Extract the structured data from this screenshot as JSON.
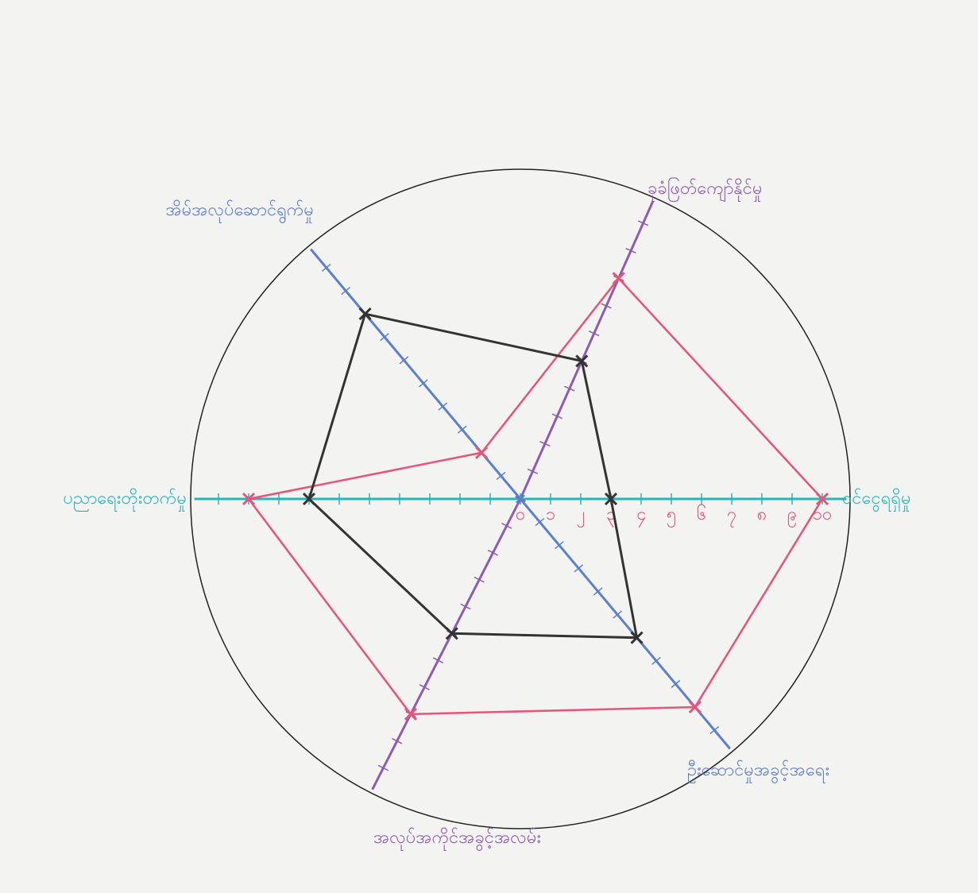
{
  "chart_data": {
    "type": "radar",
    "categories": [
      "ဝင်ငွေရရှိမှု",
      "ခုခံဖြတ်ကျော်နိုင်မှု",
      "အိမ်အလုပ်ဆောင်ရွက်မှု",
      "ပညာရေးတိုးတက်မှု",
      "အလုပ်အကိုင်အခွင့်အလမ်း",
      "ဦးဆောင်မှုအခွင့်အရေး"
    ],
    "series": [
      {
        "color": "#e8537a",
        "values": [
          10,
          8,
          2,
          9,
          8,
          9
        ]
      },
      {
        "color": "#333333",
        "values": [
          3,
          5,
          8,
          7,
          5,
          6
        ]
      }
    ],
    "ylim": [
      0,
      10
    ],
    "yticks": [
      {
        "value": 0,
        "label": "၀"
      },
      {
        "value": 1,
        "label": "၁"
      },
      {
        "value": 2,
        "label": "၂"
      },
      {
        "value": 3,
        "label": "၃"
      },
      {
        "value": 4,
        "label": "၄"
      },
      {
        "value": 5,
        "label": "၅"
      },
      {
        "value": 6,
        "label": "၆"
      },
      {
        "value": 7,
        "label": "၇"
      },
      {
        "value": 8,
        "label": "၈"
      },
      {
        "value": 9,
        "label": "၉"
      },
      {
        "value": 10,
        "label": "၁၀"
      }
    ]
  }
}
